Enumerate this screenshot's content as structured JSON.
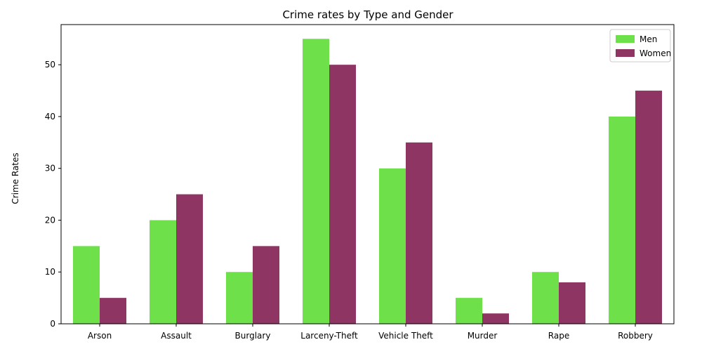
{
  "chart_data": {
    "type": "bar",
    "title": "Crime rates by Type and Gender",
    "xlabel": "",
    "ylabel": "Crime Rates",
    "categories": [
      "Arson",
      "Assault",
      "Burglary",
      "Larceny-Theft",
      "Vehicle Theft",
      "Murder",
      "Rape",
      "Robbery"
    ],
    "series": [
      {
        "name": "Men",
        "color": "#6ee04a",
        "values": [
          15,
          20,
          10,
          55,
          30,
          5,
          10,
          40
        ]
      },
      {
        "name": "Women",
        "color": "#8e3563",
        "values": [
          5,
          25,
          15,
          50,
          35,
          2,
          8,
          45
        ]
      }
    ],
    "ylim": [
      0,
      57.75
    ],
    "yticks": [
      0,
      10,
      20,
      30,
      40,
      50
    ],
    "grid": false,
    "legend_position": "top-right"
  }
}
